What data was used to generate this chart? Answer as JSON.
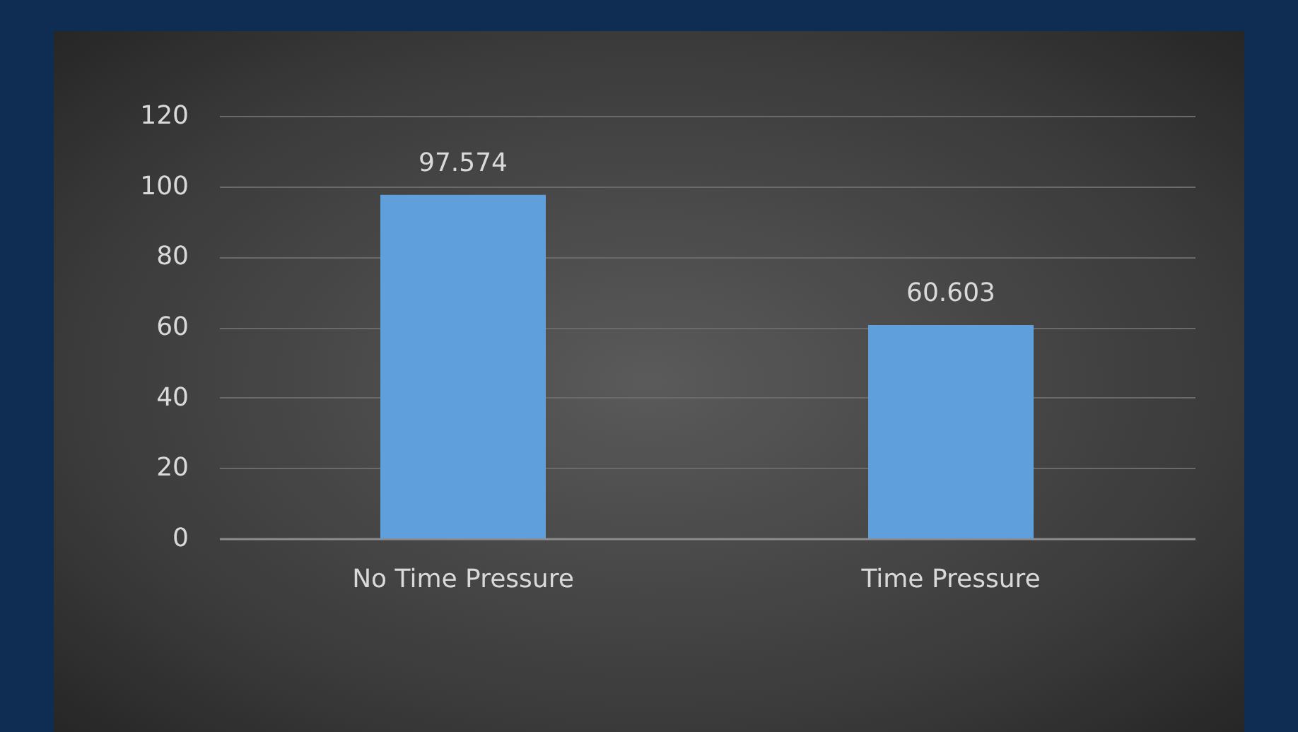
{
  "chart_data": {
    "type": "bar",
    "categories": [
      "No Time Pressure",
      "Time Pressure"
    ],
    "values": [
      97.574,
      60.603
    ],
    "color": "#5e9fdc",
    "ylim": [
      0,
      120
    ],
    "yticks": [
      0,
      20,
      40,
      60,
      80,
      100,
      120
    ],
    "grid": "y",
    "data_labels": true
  }
}
